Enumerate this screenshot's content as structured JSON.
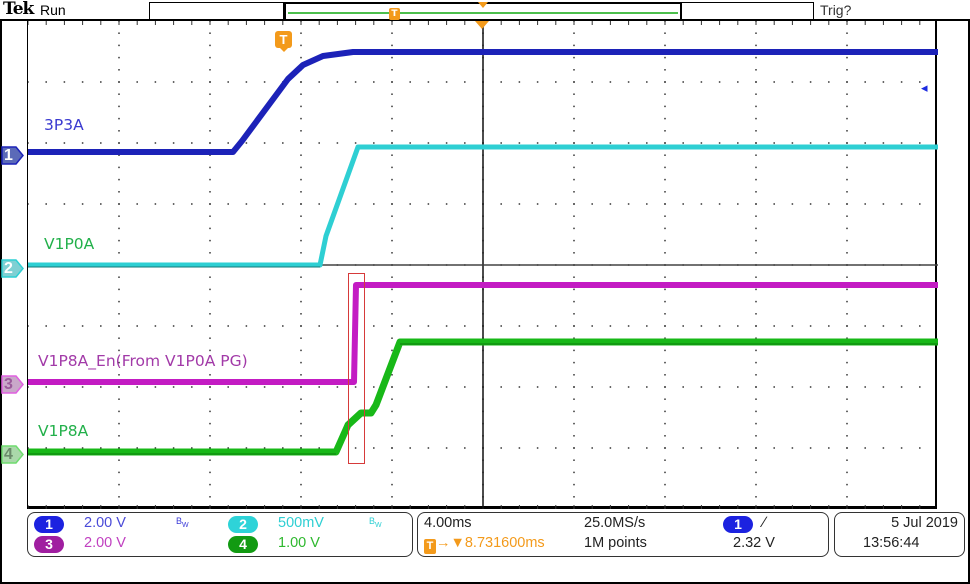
{
  "header": {
    "brand": "Tek",
    "acquisition_state": "Run",
    "trigger_state": "Trig?",
    "record_view_marker": "T"
  },
  "graticule": {
    "h_divisions": 10,
    "v_divisions": 8,
    "trigger_position_marker": "T",
    "reference_arrow": "◂"
  },
  "channels": [
    {
      "number": "1",
      "label": "3P3A",
      "color": "#1c22b8",
      "scale": "2.00 V",
      "bandwidth_limit": "BW"
    },
    {
      "number": "2",
      "label": "V1P0A",
      "color": "#2ecfd3",
      "scale": "500mV",
      "bandwidth_limit": "BW"
    },
    {
      "number": "3",
      "label": "V1P8A_En(From V1P0A PG)",
      "color": "#b01fb0",
      "scale": "2.00 V",
      "bandwidth_limit": ""
    },
    {
      "number": "4",
      "label": "V1P8A",
      "color": "#1aa81a",
      "scale": "1.00 V",
      "bandwidth_limit": ""
    }
  ],
  "trace_label_colors": {
    "3P3A": "#3a3ad0",
    "V1P0A": "#22b04a",
    "V1P8A_En": "#a23aa8",
    "V1P8A": "#22b04a"
  },
  "annotation": {
    "highlight_box_color": "#d63a3a"
  },
  "horizontal": {
    "time_per_div": "4.00ms",
    "trigger_delay": "8.731600ms",
    "sample_rate": "25.0MS/s",
    "record_length": "1M points"
  },
  "trigger": {
    "source": "1",
    "slope": "rising",
    "slope_glyph": "∕",
    "level": "2.32 V"
  },
  "datetime": {
    "date": "5 Jul  2019",
    "time": "13:56:44"
  }
}
